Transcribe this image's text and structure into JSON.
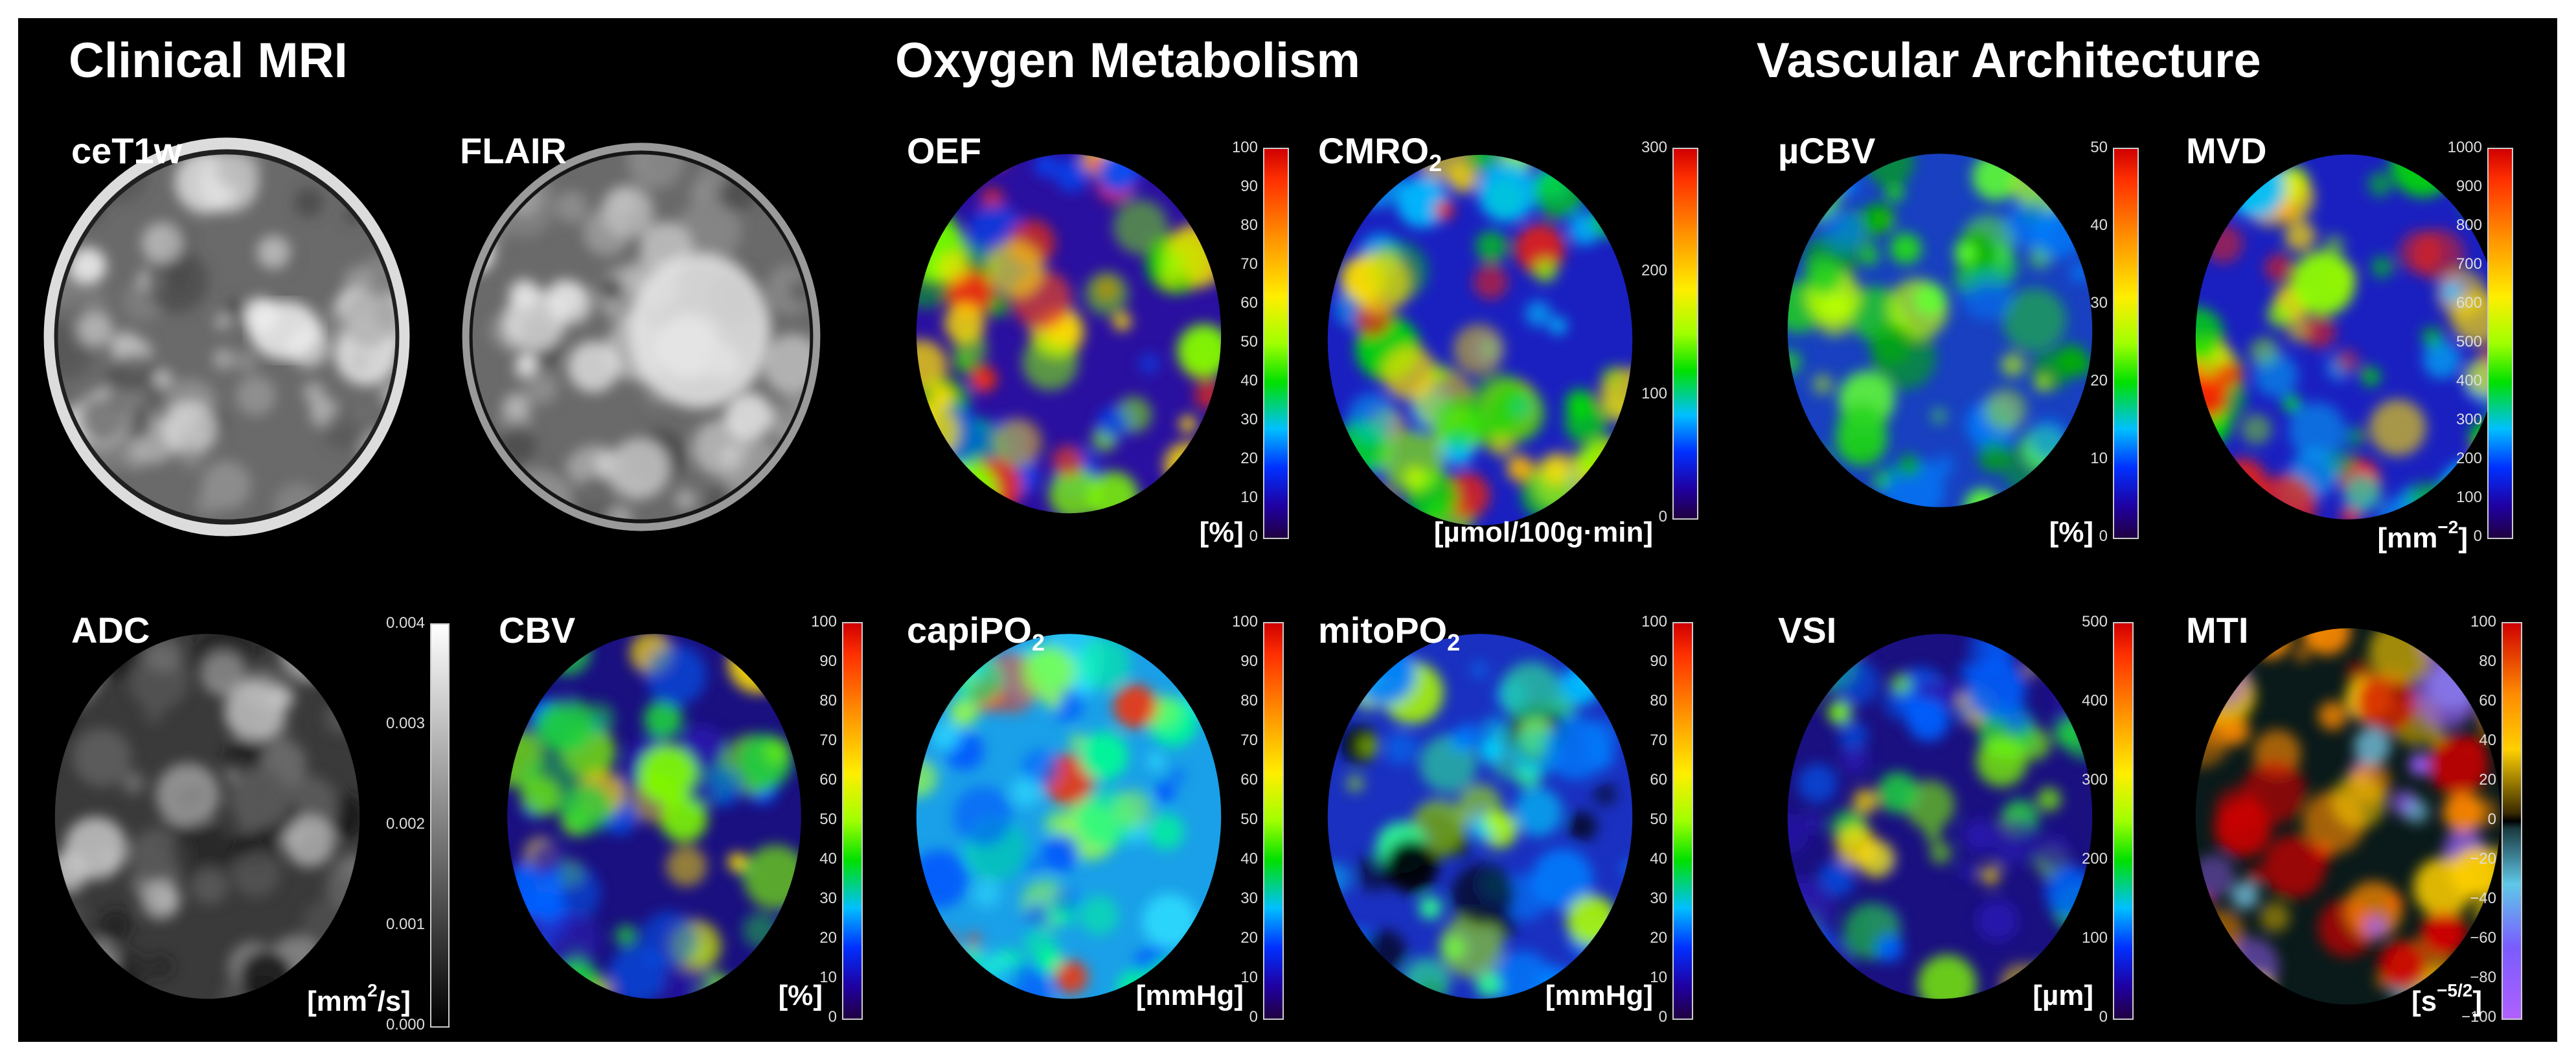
{
  "headings": {
    "clinical": "Clinical MRI",
    "oxygen": "Oxygen Metabolism",
    "vascular": "Vascular Architecture"
  },
  "panels": [
    {
      "label": "ceT1w",
      "sub": "",
      "unit": "",
      "unit_sup": "",
      "unit_after": "",
      "scale": "none",
      "ticks": [],
      "palette": "gray"
    },
    {
      "label": "FLAIR",
      "sub": "",
      "unit": "",
      "unit_sup": "",
      "unit_after": "",
      "scale": "none",
      "ticks": [],
      "palette": "gray"
    },
    {
      "label": "OEF",
      "sub": "",
      "unit": "[%]",
      "unit_sup": "",
      "unit_after": "",
      "scale": "rainbow",
      "ticks": [
        "100",
        "90",
        "80",
        "70",
        "60",
        "50",
        "40",
        "30",
        "20",
        "10",
        "0"
      ],
      "palette": "rainbow-hot"
    },
    {
      "label": "CMRO",
      "sub": "2",
      "unit": "[µmol/100g·min]",
      "unit_sup": "",
      "unit_after": "",
      "scale": "rainbow",
      "ticks": [
        "300",
        "200",
        "100",
        "0"
      ],
      "palette": "rainbow-mid"
    },
    {
      "label": "µCBV",
      "sub": "",
      "unit": "[%]",
      "unit_sup": "",
      "unit_after": "",
      "scale": "rainbow",
      "ticks": [
        "50",
        "40",
        "30",
        "20",
        "10",
        "0"
      ],
      "palette": "rainbow-green"
    },
    {
      "label": "MVD",
      "sub": "",
      "unit": "[mm",
      "unit_sup": "−2",
      "unit_after": "]",
      "scale": "rainbow",
      "ticks": [
        "1000",
        "900",
        "800",
        "700",
        "600",
        "500",
        "400",
        "300",
        "200",
        "100",
        "0"
      ],
      "palette": "rainbow-mid"
    },
    {
      "label": "ADC",
      "sub": "",
      "unit": "[mm",
      "unit_sup": "2",
      "unit_after": "/s]",
      "scale": "gray",
      "ticks": [
        "0.004",
        "0.003",
        "0.002",
        "0.001",
        "0.000"
      ],
      "palette": "gray-dark"
    },
    {
      "label": "CBV",
      "sub": "",
      "unit": "[%]",
      "unit_sup": "",
      "unit_after": "",
      "scale": "rainbow",
      "ticks": [
        "100",
        "90",
        "80",
        "70",
        "60",
        "50",
        "40",
        "30",
        "20",
        "10",
        "0"
      ],
      "palette": "rainbow-blue"
    },
    {
      "label": "capiPO",
      "sub": "2",
      "unit": "[mmHg]",
      "unit_sup": "",
      "unit_after": "",
      "scale": "rainbow",
      "ticks": [
        "100",
        "90",
        "80",
        "70",
        "60",
        "50",
        "40",
        "30",
        "20",
        "10",
        "0"
      ],
      "palette": "rainbow-cyan"
    },
    {
      "label": "mitoPO",
      "sub": "2",
      "unit": "[mmHg]",
      "unit_sup": "",
      "unit_after": "",
      "scale": "rainbow",
      "ticks": [
        "100",
        "90",
        "80",
        "70",
        "60",
        "50",
        "40",
        "30",
        "20",
        "10",
        "0"
      ],
      "palette": "rainbow-cyanblue"
    },
    {
      "label": "VSI",
      "sub": "",
      "unit": "[µm]",
      "unit_sup": "",
      "unit_after": "",
      "scale": "rainbow",
      "ticks": [
        "500",
        "400",
        "300",
        "200",
        "100",
        "0"
      ],
      "palette": "rainbow-blue"
    },
    {
      "label": "MTI",
      "sub": "",
      "unit": "[s",
      "unit_sup": "−5/2",
      "unit_after": "]",
      "scale": "diverging",
      "ticks": [
        "100",
        "80",
        "60",
        "40",
        "20",
        "0",
        "−20",
        "−40",
        "−60",
        "−80",
        "−100"
      ],
      "palette": "diverging"
    }
  ],
  "colors": {
    "background": "#000000",
    "text": "#ffffff"
  }
}
